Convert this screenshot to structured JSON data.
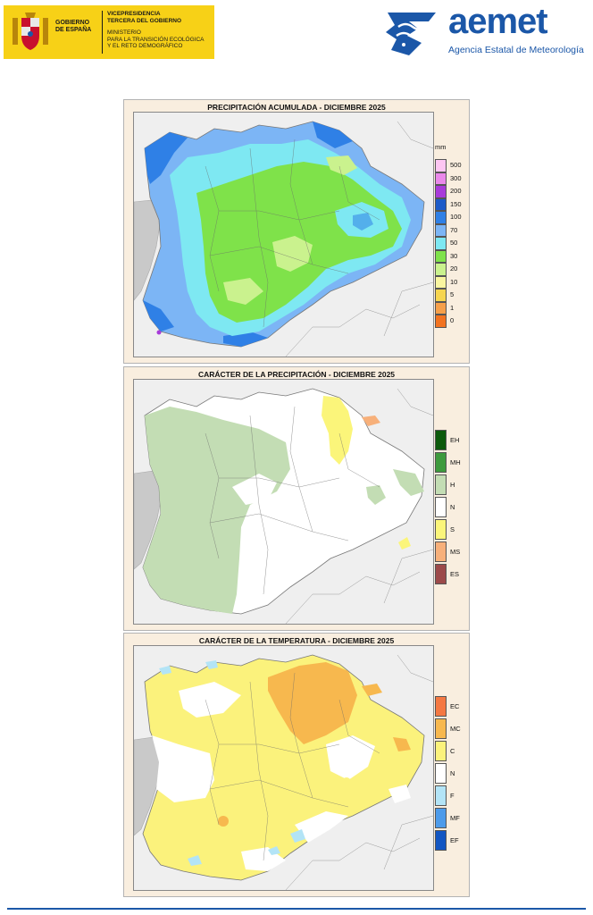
{
  "header": {
    "government": {
      "name_lines": [
        "GOBIERNO",
        "DE ESPAÑA"
      ],
      "vice_lines": [
        "VICEPRESIDENCIA",
        "TERCERA DEL GOBIERNO"
      ],
      "ministry_lines": [
        "MINISTERIO",
        "PARA LA TRANSICIÓN ECOLÓGICA",
        "Y EL RETO DEMOGRÁFICO"
      ],
      "logo_color": "#f7d117"
    },
    "aemet": {
      "word": "aemet",
      "subtitle": "Agencia Estatal de Meteorología",
      "brand_color": "#1b57a8"
    }
  },
  "panels": [
    {
      "title": "PRECIPITACIÓN ACUMULADA - DICIEMBRE 2025",
      "legend_unit": "mm",
      "legend": [
        {
          "label": "500",
          "color": "#fdc6f2"
        },
        {
          "label": "300",
          "color": "#ea88ea"
        },
        {
          "label": "200",
          "color": "#a83bd9"
        },
        {
          "label": "150",
          "color": "#1d5bc8"
        },
        {
          "label": "100",
          "color": "#2f80e6"
        },
        {
          "label": "70",
          "color": "#7cb5f5"
        },
        {
          "label": "50",
          "color": "#7ee8f2"
        },
        {
          "label": "30",
          "color": "#7fe24a"
        },
        {
          "label": "20",
          "color": "#caf28e"
        },
        {
          "label": "10",
          "color": "#f9f5a0"
        },
        {
          "label": "5",
          "color": "#f6d54f"
        },
        {
          "label": "1",
          "color": "#f6a04a"
        },
        {
          "label": "0",
          "color": "#f27320"
        }
      ]
    },
    {
      "title": "CARÁCTER DE LA PRECIPITACIÓN - DICIEMBRE 2025",
      "legend": [
        {
          "label": "EH",
          "color": "#0c5a0c"
        },
        {
          "label": "MH",
          "color": "#3d9a3d"
        },
        {
          "label": "H",
          "color": "#c3ddb4"
        },
        {
          "label": "N",
          "color": "#ffffff"
        },
        {
          "label": "S",
          "color": "#fbf57a"
        },
        {
          "label": "MS",
          "color": "#f7b07a"
        },
        {
          "label": "ES",
          "color": "#9c4a4a"
        }
      ]
    },
    {
      "title": "CARÁCTER DE LA TEMPERATURA - DICIEMBRE 2025",
      "legend": [
        {
          "label": "EC",
          "color": "#f47842"
        },
        {
          "label": "MC",
          "color": "#f7b84e"
        },
        {
          "label": "C",
          "color": "#fbf27c"
        },
        {
          "label": "N",
          "color": "#ffffff"
        },
        {
          "label": "F",
          "color": "#b3e4f6"
        },
        {
          "label": "MF",
          "color": "#4d9bea"
        },
        {
          "label": "EF",
          "color": "#1256c2"
        }
      ]
    }
  ]
}
